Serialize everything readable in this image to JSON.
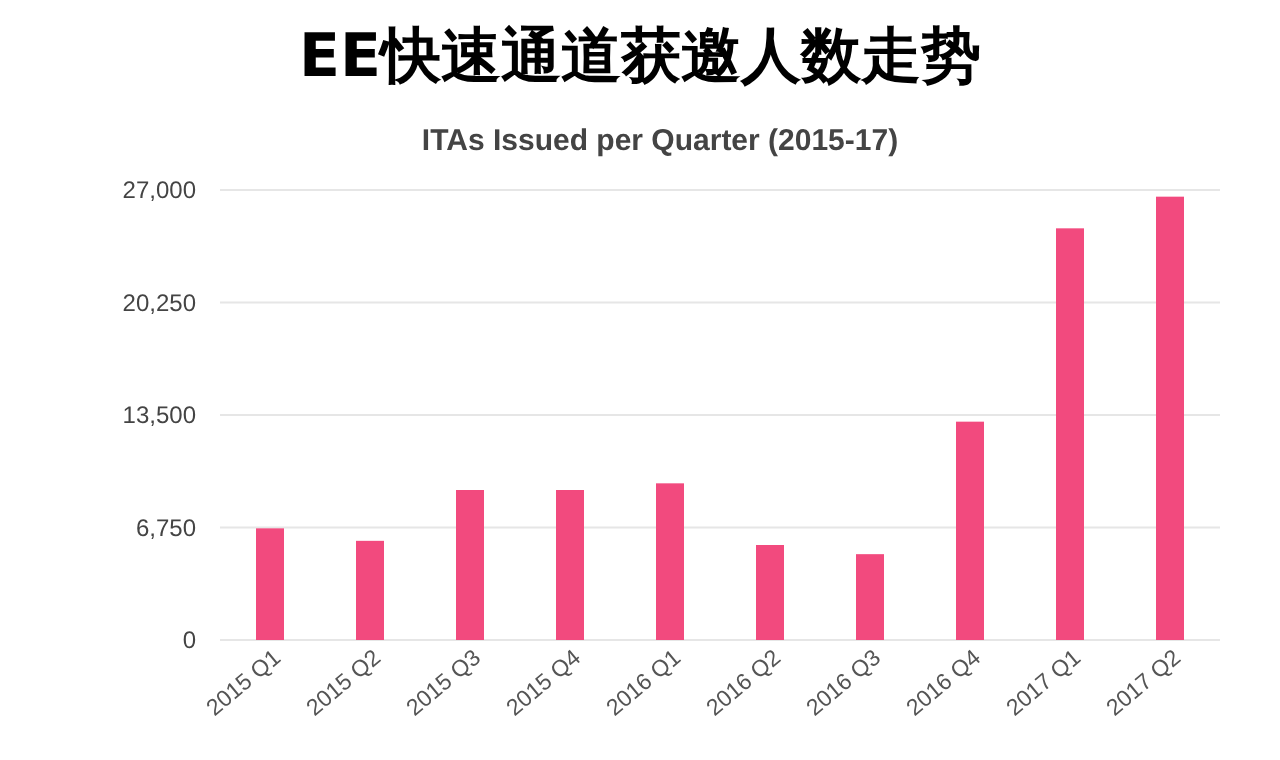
{
  "chart_data": {
    "type": "bar",
    "title": "EE快速通道获邀人数走势",
    "subtitle": "ITAs Issued per Quarter (2015-17)",
    "categories": [
      "2015 Q1",
      "2015 Q2",
      "2015 Q3",
      "2015 Q4",
      "2016 Q1",
      "2016 Q2",
      "2016 Q3",
      "2016 Q4",
      "2017 Q1",
      "2017 Q2"
    ],
    "values": [
      6700,
      5950,
      9000,
      9000,
      9400,
      5700,
      5150,
      13100,
      24700,
      26600
    ],
    "color": "#f24a7e",
    "ylim": [
      0,
      27000
    ],
    "yticks": [
      0,
      {
        "value": 6750,
        "label": "6,750"
      },
      {
        "value": 13500,
        "label": "13,500"
      },
      {
        "value": 20250,
        "label": "20,250"
      },
      {
        "value": 27000,
        "label": "27,000"
      }
    ],
    "grid": "y"
  }
}
